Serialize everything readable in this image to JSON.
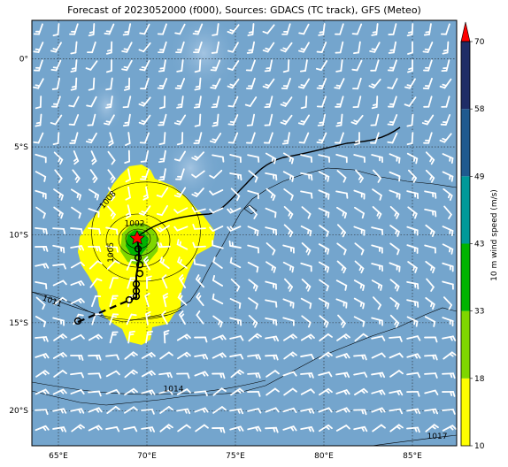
{
  "title": "Forecast of 2023052000 (f000), Sources: GDACS (TC track), GFS (Meteo)",
  "map": {
    "lon_range": [
      63.5,
      87.5
    ],
    "lat_range": [
      -22,
      2.2
    ],
    "lon_ticks": [
      {
        "value": 65,
        "label": "65°E"
      },
      {
        "value": 70,
        "label": "70°E"
      },
      {
        "value": 75,
        "label": "75°E"
      },
      {
        "value": 80,
        "label": "80°E"
      },
      {
        "value": 85,
        "label": "85°E"
      }
    ],
    "lat_ticks": [
      {
        "value": 0,
        "label": "0°"
      },
      {
        "value": -5,
        "label": "5°S"
      },
      {
        "value": -10,
        "label": "10°S"
      },
      {
        "value": -15,
        "label": "15°S"
      },
      {
        "value": -20,
        "label": "20°S"
      }
    ],
    "grid": true,
    "ocean_color": "#74a5cd",
    "wind_barb_color": "#ffffff"
  },
  "pressure_contours": [
    {
      "label": "1002",
      "lon": 69.3,
      "lat": -9.5
    },
    {
      "label": "1005",
      "lon": 68.1,
      "lat": -11.0
    },
    {
      "label": "1008",
      "lon": 67.9,
      "lat": -8.1
    },
    {
      "label": "1011",
      "lon": 64.6,
      "lat": -13.9
    },
    {
      "label": "1014",
      "lon": 71.5,
      "lat": -18.9
    },
    {
      "label": "1017",
      "lon": 86.4,
      "lat": -21.6
    }
  ],
  "tc_track": {
    "center": {
      "lon": 69.4,
      "lat": -10.1,
      "marker": "star",
      "color": "#ff0000"
    },
    "past_points": [
      {
        "lon": 69.5,
        "lat": -10.8
      },
      {
        "lon": 69.5,
        "lat": -11.3
      },
      {
        "lon": 69.6,
        "lat": -11.7
      },
      {
        "lon": 69.6,
        "lat": -12.2
      },
      {
        "lon": 69.4,
        "lat": -12.8
      },
      {
        "lon": 69.4,
        "lat": -13.2
      },
      {
        "lon": 69.4,
        "lat": -13.5
      },
      {
        "lon": 69.0,
        "lat": -13.7
      },
      {
        "lon": 66.1,
        "lat": -14.9
      }
    ]
  },
  "colorbar": {
    "label": "10 m wind speed (m/s)",
    "ticks": [
      "10",
      "18",
      "33",
      "43",
      "49",
      "58",
      "70"
    ],
    "colors": [
      "#ffff00",
      "#7fd600",
      "#00b400",
      "#009999",
      "#1f5a8f",
      "#1f2d66"
    ],
    "extend_color": "#ff0000"
  }
}
